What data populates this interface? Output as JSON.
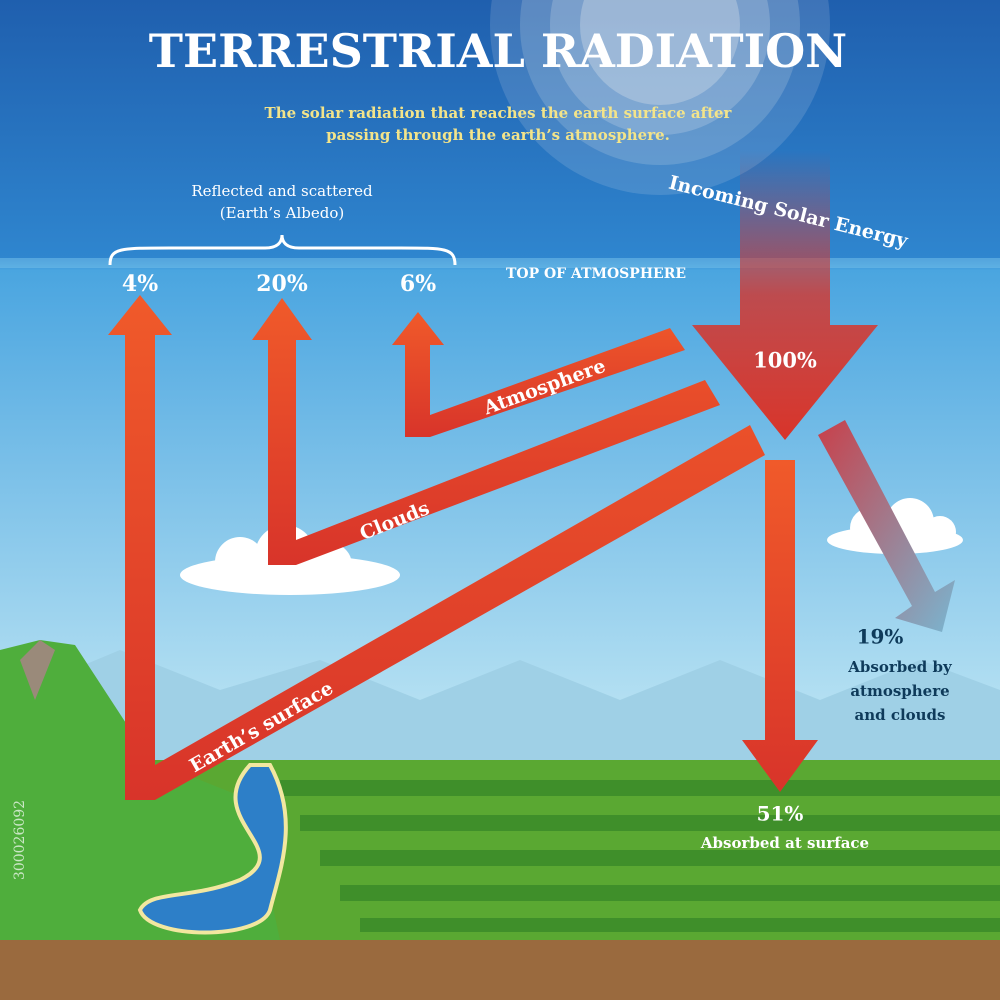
{
  "header": {
    "title": "TERRESTRIAL RADIATION",
    "subtitle_lines": [
      "The solar radiation that reaches the earth surface after",
      "passing through the earth’s atmosphere."
    ]
  },
  "albedo": {
    "label_lines": [
      "Reflected and scattered",
      "(Earth’s Albedo)"
    ]
  },
  "labels": {
    "top_of_atmosphere": "TOP OF ATMOSPHERE",
    "incoming": "Incoming Solar Energy",
    "incoming_pct": "100%"
  },
  "reflected": [
    {
      "pct": "4%",
      "path": "Earth’s surface"
    },
    {
      "pct": "20%",
      "path": "Clouds"
    },
    {
      "pct": "6%",
      "path": "Atmosphere"
    }
  ],
  "absorbed": [
    {
      "pct": "19%",
      "label_lines": [
        "Absorbed by",
        "atmosphere",
        "and clouds"
      ]
    },
    {
      "pct": "51%",
      "label": "Absorbed at surface"
    }
  ],
  "stock_id": "300026092"
}
